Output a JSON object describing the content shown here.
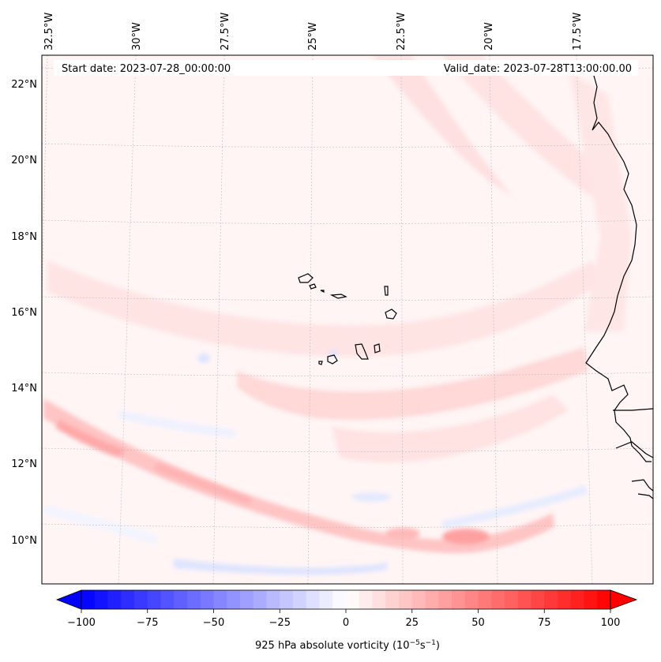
{
  "map": {
    "start_date_label": "Start date: 2023-07-28_00:00:00",
    "valid_date_label": "Valid_date: 2023-07-28T13:00:00.00",
    "lon_labels": [
      "32.5°W",
      "30°W",
      "27.5°W",
      "25°W",
      "22.5°W",
      "20°W",
      "17.5°W"
    ],
    "lat_labels": [
      "22°N",
      "20°N",
      "18°N",
      "16°N",
      "14°N",
      "12°N",
      "10°N"
    ],
    "field_colors": {
      "background": "#fff5f5",
      "weak_positive": "#ffe3e3",
      "moderate_positive": "#ffcccc",
      "strong_positive": "#ffb3b3",
      "weak_negative": "#eef2ff",
      "moderate_negative": "#dde4ff"
    }
  },
  "colorbar": {
    "tick_labels": [
      "−100",
      "−75",
      "−50",
      "−25",
      "0",
      "25",
      "50",
      "75",
      "100"
    ],
    "label_main": "925 hPa absolute vorticity (10",
    "label_exp1": "−5",
    "label_mid": "s",
    "label_exp2": "−1",
    "label_end": ")",
    "min": -100,
    "max": 100
  }
}
